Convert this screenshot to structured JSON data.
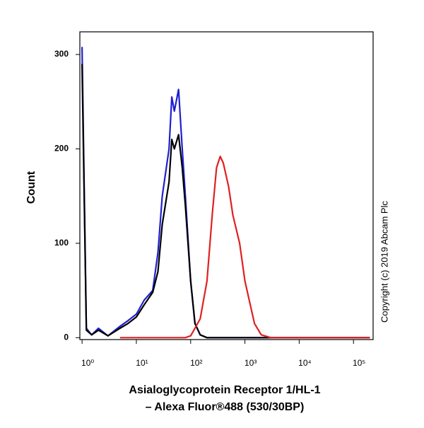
{
  "chart_data": {
    "type": "line",
    "y_title": "Count",
    "x_title": [
      "Asialoglycoprotein  Receptor 1/HL-1",
      "– Alexa Fluor®488 (530/30BP)"
    ],
    "annotation": "Copyright (c) 2019 Abcam Plc",
    "x_log": true,
    "x": [
      1,
      1.2,
      1.5,
      2,
      3,
      5,
      7,
      10,
      14,
      20,
      25,
      30,
      40,
      45,
      50,
      60,
      70,
      80,
      100,
      120,
      150,
      200,
      250,
      300,
      350,
      400,
      500,
      600,
      800,
      1000,
      1500,
      2000,
      3000,
      5000,
      10000,
      100000,
      200000
    ],
    "series": [
      {
        "color": "#1f1fd0",
        "values": [
          308,
          10,
          3,
          10,
          2,
          12,
          18,
          25,
          40,
          50,
          90,
          150,
          200,
          255,
          240,
          263,
          200,
          150,
          60,
          15,
          3,
          0,
          0,
          0,
          0,
          0,
          0,
          0,
          0,
          0,
          0,
          0,
          0,
          0,
          0,
          0,
          0
        ]
      },
      {
        "color": "#000000",
        "values": [
          290,
          8,
          3,
          8,
          2,
          10,
          15,
          22,
          35,
          48,
          70,
          120,
          165,
          210,
          200,
          215,
          180,
          140,
          60,
          15,
          3,
          0,
          0,
          0,
          0,
          0,
          0,
          0,
          0,
          0,
          0,
          0,
          0,
          0,
          0,
          0,
          0
        ]
      },
      {
        "color": "#e02020",
        "values": [
          null,
          null,
          null,
          null,
          null,
          0,
          0,
          0,
          0,
          0,
          0,
          0,
          0,
          0,
          0,
          0,
          0,
          0,
          2,
          10,
          20,
          60,
          130,
          180,
          192,
          185,
          160,
          130,
          100,
          60,
          15,
          3,
          0,
          0,
          0,
          0,
          0
        ]
      }
    ],
    "xlim": [
      0.91,
      230000
    ],
    "xticks": [
      {
        "value": 1,
        "label": "10⁰"
      },
      {
        "value": 10,
        "label": "10¹"
      },
      {
        "value": 100,
        "label": "10²"
      },
      {
        "value": 1000,
        "label": "10³"
      },
      {
        "value": 10000,
        "label": "10⁴"
      },
      {
        "value": 100000,
        "label": "10⁵"
      }
    ],
    "ylim": [
      -2,
      324
    ],
    "yticks": [
      0,
      100,
      200,
      300
    ]
  }
}
